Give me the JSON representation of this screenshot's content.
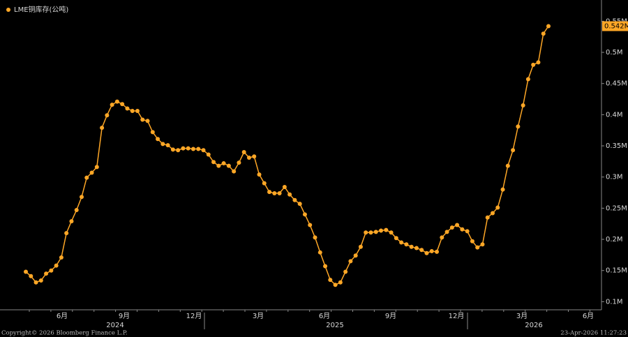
{
  "chart_data": {
    "type": "line",
    "title": "LME铜库存(公吨)",
    "color": "#ffa726",
    "values": [
      0.148,
      0.141,
      0.131,
      0.134,
      0.145,
      0.15,
      0.158,
      0.171,
      0.21,
      0.229,
      0.247,
      0.268,
      0.299,
      0.307,
      0.316,
      0.379,
      0.399,
      0.416,
      0.421,
      0.417,
      0.41,
      0.406,
      0.406,
      0.392,
      0.39,
      0.372,
      0.361,
      0.353,
      0.351,
      0.344,
      0.343,
      0.346,
      0.346,
      0.345,
      0.345,
      0.343,
      0.336,
      0.324,
      0.318,
      0.322,
      0.318,
      0.309,
      0.323,
      0.34,
      0.331,
      0.333,
      0.304,
      0.29,
      0.276,
      0.274,
      0.274,
      0.284,
      0.272,
      0.263,
      0.257,
      0.24,
      0.223,
      0.203,
      0.179,
      0.157,
      0.135,
      0.127,
      0.131,
      0.148,
      0.165,
      0.174,
      0.188,
      0.211,
      0.211,
      0.212,
      0.214,
      0.215,
      0.211,
      0.202,
      0.195,
      0.192,
      0.188,
      0.186,
      0.183,
      0.178,
      0.181,
      0.18,
      0.203,
      0.212,
      0.219,
      0.223,
      0.216,
      0.213,
      0.197,
      0.187,
      0.192,
      0.235,
      0.242,
      0.251,
      0.28,
      0.318,
      0.343,
      0.381,
      0.415,
      0.457,
      0.48,
      0.484,
      0.53,
      0.542
    ],
    "value_labels": [
      null,
      null,
      null,
      null,
      null,
      null,
      null,
      null,
      null,
      null,
      null,
      null,
      null,
      null,
      null,
      null,
      null,
      null,
      null,
      null,
      null,
      null,
      null,
      null,
      null,
      null,
      null,
      null,
      null,
      null,
      null,
      null,
      null,
      null,
      null,
      null,
      null,
      null,
      null,
      null,
      null,
      null,
      null,
      null,
      null,
      null,
      null,
      null,
      null,
      null,
      null,
      null,
      null,
      null,
      null,
      null,
      null,
      null,
      null,
      null,
      null,
      null,
      null,
      null,
      null,
      null,
      null,
      null,
      null,
      null,
      null,
      null,
      null,
      null,
      null,
      null,
      null,
      null,
      null,
      null,
      null,
      null,
      null,
      null,
      null,
      null,
      null,
      null,
      null,
      null,
      null,
      null,
      null,
      null,
      null,
      null,
      null,
      null,
      null,
      null,
      null,
      null,
      null,
      "0.542M"
    ],
    "ylim": [
      0.087,
      0.584
    ],
    "yticks": [
      {
        "value": 0.1,
        "label": "0.1M"
      },
      {
        "value": 0.15,
        "label": "0.15M"
      },
      {
        "value": 0.2,
        "label": "0.2M"
      },
      {
        "value": 0.25,
        "label": "0.25M"
      },
      {
        "value": 0.3,
        "label": "0.3M"
      },
      {
        "value": 0.35,
        "label": "0.35M"
      },
      {
        "value": 0.4,
        "label": "0.4M"
      },
      {
        "value": 0.45,
        "label": "0.45M"
      },
      {
        "value": 0.5,
        "label": "0.5M"
      },
      {
        "value": 0.55,
        "label": "0.55M"
      }
    ],
    "month_labels": [
      "6月",
      "9月",
      "12月",
      "3月",
      "6月",
      "9月",
      "12月",
      "3月",
      "6月"
    ],
    "year_labels": [
      "2024",
      "2025",
      "2026"
    ]
  },
  "footer": {
    "copyright": "Copyright© 2026 Bloomberg Finance L.P.",
    "timestamp": "23-Apr-2026 11:27:23"
  }
}
